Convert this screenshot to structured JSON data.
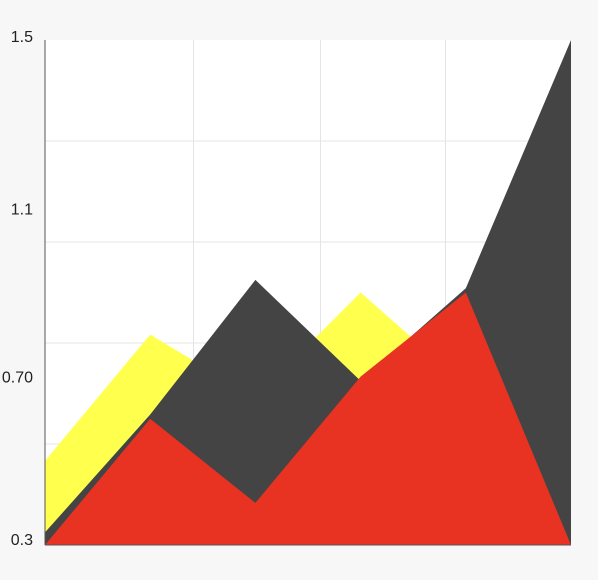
{
  "chart_data": {
    "type": "area",
    "title": "",
    "xlabel": "",
    "ylabel": "",
    "ylim": [
      0.3,
      1.5
    ],
    "y_tick_labels": [
      {
        "value": 1.5,
        "label": "1.5"
      },
      {
        "value": 1.1,
        "label": "1.1"
      },
      {
        "value": 0.7,
        "label": "0.70"
      },
      {
        "value": 0.3,
        "label": "0.3"
      }
    ],
    "grid": true,
    "legend": "none",
    "background": "#ffffff",
    "x": [
      0,
      1,
      2,
      3,
      4,
      5
    ],
    "series": [
      {
        "color": "#ffff4d",
        "values": [
          0.5,
          0.8,
          0.65,
          0.9,
          0.68,
          0.3
        ]
      },
      {
        "color": "#444444",
        "values": [
          0.33,
          0.61,
          0.93,
          0.69,
          0.91,
          1.5
        ]
      },
      {
        "color": "#e83323",
        "values": [
          0.3,
          0.6,
          0.4,
          0.7,
          0.9,
          0.3
        ]
      }
    ]
  }
}
